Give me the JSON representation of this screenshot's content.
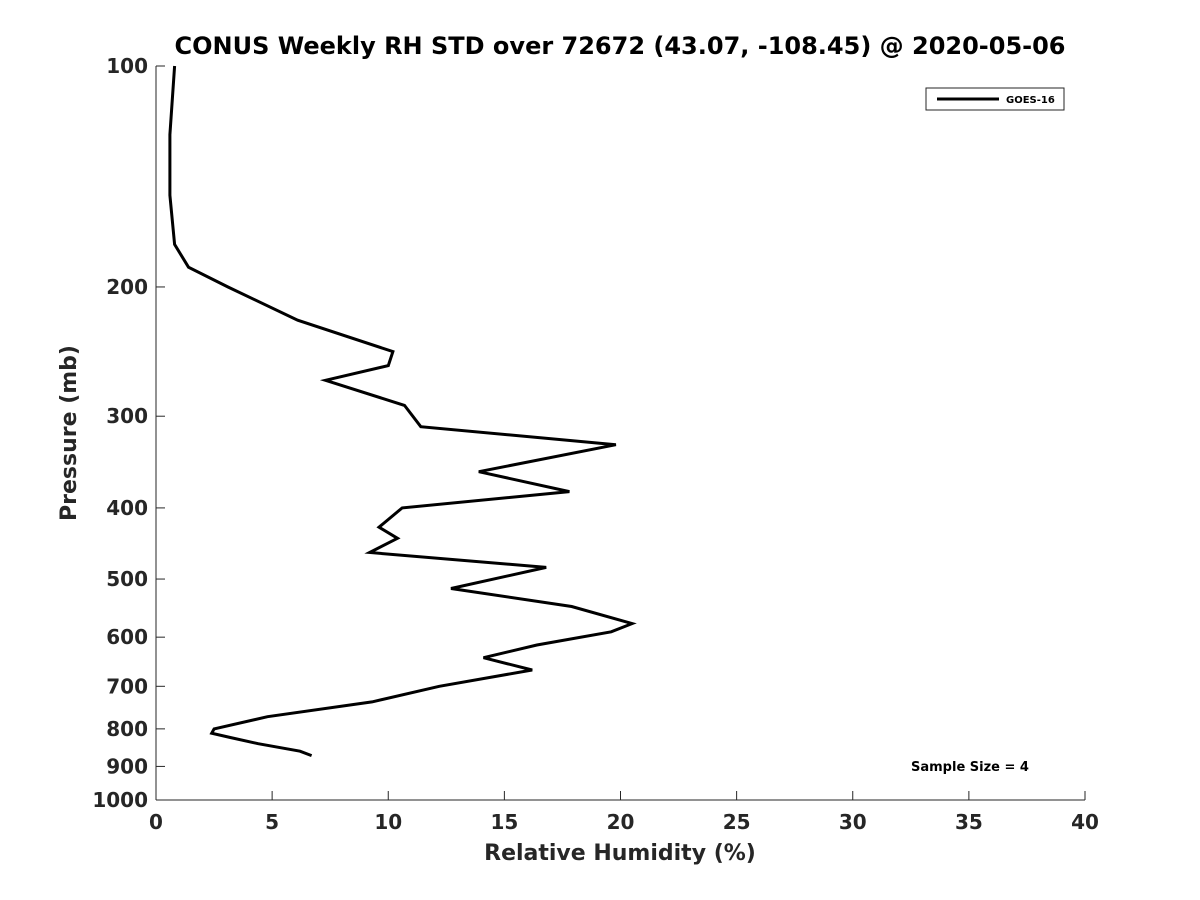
{
  "chart_data": {
    "type": "line",
    "title": "CONUS Weekly RH STD over 72672 (43.07, -108.45) @ 2020-05-06",
    "xlabel": "Relative Humidity (%)",
    "ylabel": "Pressure (mb)",
    "xlim": [
      0,
      40
    ],
    "ylim": [
      1000,
      100
    ],
    "yscale": "log",
    "y_reversed": true,
    "xticks": [
      0,
      5,
      10,
      15,
      20,
      25,
      30,
      35,
      40
    ],
    "yticks": [
      100,
      200,
      300,
      400,
      500,
      600,
      700,
      800,
      900,
      1000
    ],
    "grid": false,
    "legend_position": "top-right",
    "annotation": "Sample Size = 4",
    "series": [
      {
        "name": "GOES-16",
        "color": "#000000",
        "x": [
          0.8,
          0.6,
          0.6,
          0.8,
          1.4,
          3.1,
          6.1,
          10.2,
          10.0,
          7.3,
          10.7,
          11.4,
          19.8,
          13.9,
          17.8,
          10.6,
          9.6,
          10.4,
          9.2,
          16.8,
          12.7,
          17.9,
          20.5,
          19.6,
          16.4,
          14.1,
          16.2,
          12.2,
          9.3,
          4.8,
          2.5,
          2.4,
          3.2,
          4.4,
          6.2,
          6.7
        ],
        "y": [
          100,
          124,
          150,
          175,
          188,
          200,
          222,
          245,
          256,
          268,
          290,
          310,
          328,
          357,
          380,
          400,
          425,
          440,
          460,
          482,
          515,
          545,
          575,
          590,
          615,
          640,
          665,
          700,
          735,
          770,
          800,
          811,
          822,
          838,
          858,
          870
        ]
      }
    ]
  }
}
